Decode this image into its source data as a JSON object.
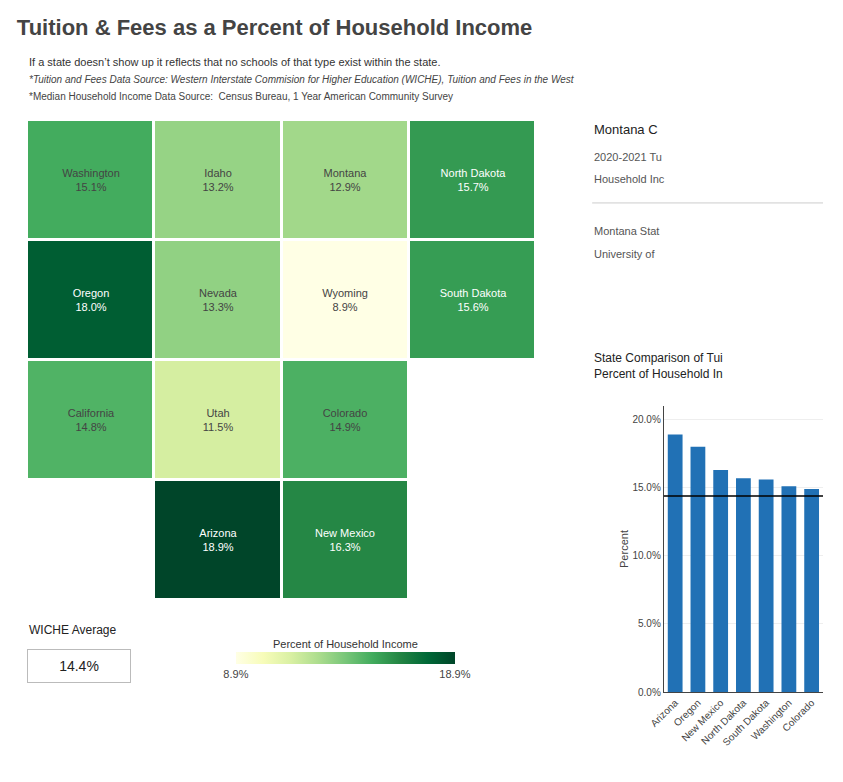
{
  "title": "Tuition & Fees as a Percent of Household Income",
  "subtitles": [
    "If a state doesn’t show up it reflects that no schools of that type exist within the state.",
    "*Tuition and Fees Data Source: Western Interstate Commision for Higher Education (WICHE), Tuition and Fees in the West",
    "*Median Household Income Data Source:  Census Bureau, 1 Year American Community Survey"
  ],
  "annotations": [
    "Montana C",
    "2020-2021 Tu",
    "Household Inc",
    "Montana Stat",
    "University of"
  ],
  "chart_data": [
    {
      "type": "choropleth",
      "categories": [
        "Washington",
        "Oregon",
        "California",
        "Nevada",
        "Idaho",
        "Montana",
        "Wyoming",
        "Utah",
        "Arizona",
        "Colorado",
        "New Mexico",
        "North Dakota",
        "South Dakota"
      ],
      "values": [
        15.1,
        18.0,
        14.8,
        13.3,
        13.2,
        12.9,
        8.9,
        11.5,
        18.9,
        14.9,
        16.3,
        15.7,
        15.6
      ],
      "value_labels": [
        "15.1%",
        "18.0%",
        "14.8%",
        "13.3%",
        "13.2%",
        "12.9%",
        "8.9%",
        "11.5%",
        "18.9%",
        "14.9%",
        "16.3%",
        "15.7%",
        "15.6%"
      ],
      "tick_labels": false,
      "colorscale": [
        "#ffffe5",
        "#f7fcb9",
        "#d9f0a3",
        "#addd8e",
        "#78c679",
        "#41ab5d",
        "#238443",
        "#006837",
        "#004529"
      ],
      "average_label": "WICHE Average",
      "average_text": "14.4%",
      "colorbar": {
        "title": "Percent of Household Income",
        "range": [
          8.9,
          18.9
        ],
        "ticks": [
          {
            "value": 8.9,
            "label": "8.9%"
          },
          {
            "value": 18.9,
            "label": "18.9%"
          }
        ]
      }
    },
    {
      "type": "bar",
      "title": "State Comparison of Tui\nPercent of Household In",
      "categories": [
        "Arizona",
        "Oregon",
        "New Mexico",
        "North Dakota",
        "South Dakota",
        "Washington",
        "Colorado"
      ],
      "values": [
        18.9,
        18.0,
        16.3,
        15.7,
        15.6,
        15.1,
        14.9
      ],
      "color": "#2171b5",
      "ylabel": "Percent",
      "ylim": [
        0,
        21
      ],
      "yticks": [
        {
          "value": 0,
          "label": "0.0%"
        },
        {
          "value": 5,
          "label": "5.0%"
        },
        {
          "value": 10,
          "label": "10.0%"
        },
        {
          "value": 15,
          "label": "15.0%"
        },
        {
          "value": 20,
          "label": "20.0%"
        }
      ],
      "grid": true,
      "average_line": 14.4
    }
  ]
}
